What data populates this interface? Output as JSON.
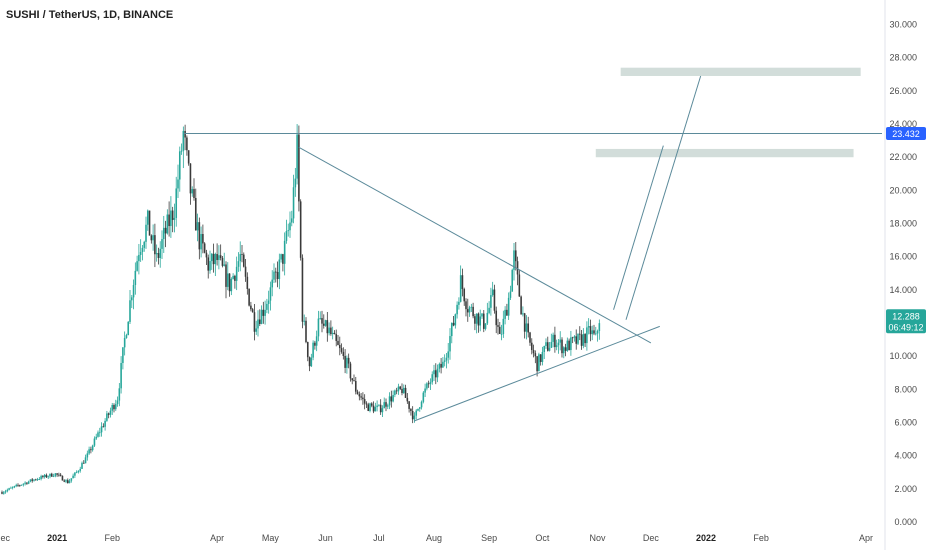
{
  "chart_data": {
    "type": "candlestick",
    "title": "SUSHI / TetherUS, 1D, BINANCE",
    "ylim": [
      0,
      31
    ],
    "y_ticks": [
      "0.000",
      "2.000",
      "4.000",
      "6.000",
      "8.000",
      "10.000",
      "12.000",
      "14.000",
      "16.000",
      "18.000",
      "20.000",
      "22.000",
      "24.000",
      "26.000",
      "28.000",
      "30.000"
    ],
    "x_range": [
      "2020-12-01",
      "2022-04-10"
    ],
    "x_ticks": [
      {
        "label": "Dec",
        "date": "2020-12-01"
      },
      {
        "label": "2021",
        "date": "2021-01-01",
        "bold": true
      },
      {
        "label": "Feb",
        "date": "2021-02-01"
      },
      {
        "label": "Apr",
        "date": "2021-04-01"
      },
      {
        "label": "May",
        "date": "2021-05-01"
      },
      {
        "label": "Jun",
        "date": "2021-06-01"
      },
      {
        "label": "Jul",
        "date": "2021-07-01"
      },
      {
        "label": "Aug",
        "date": "2021-08-01"
      },
      {
        "label": "Sep",
        "date": "2021-09-01"
      },
      {
        "label": "Oct",
        "date": "2021-10-01"
      },
      {
        "label": "Nov",
        "date": "2021-11-01"
      },
      {
        "label": "Dec",
        "date": "2021-12-01"
      },
      {
        "label": "2022",
        "date": "2022-01-01",
        "bold": true
      },
      {
        "label": "Feb",
        "date": "2022-02-01"
      },
      {
        "label": "Apr",
        "date": "2022-04-01"
      }
    ],
    "price_path": [
      [
        "2020-12-01",
        1.8
      ],
      [
        "2020-12-10",
        2.2
      ],
      [
        "2020-12-20",
        2.6
      ],
      [
        "2020-12-31",
        2.9
      ],
      [
        "2021-01-07",
        2.4
      ],
      [
        "2021-01-12",
        3.0
      ],
      [
        "2021-01-18",
        4.0
      ],
      [
        "2021-01-24",
        5.3
      ],
      [
        "2021-01-29",
        6.3
      ],
      [
        "2021-02-04",
        7.5
      ],
      [
        "2021-02-08",
        11.0
      ],
      [
        "2021-02-12",
        14.0
      ],
      [
        "2021-02-16",
        16.5
      ],
      [
        "2021-02-21",
        18.0
      ],
      [
        "2021-02-26",
        15.8
      ],
      [
        "2021-03-03",
        17.5
      ],
      [
        "2021-03-08",
        19.0
      ],
      [
        "2021-03-13",
        23.4
      ],
      [
        "2021-03-17",
        20.0
      ],
      [
        "2021-03-22",
        17.0
      ],
      [
        "2021-03-27",
        15.5
      ],
      [
        "2021-04-01",
        15.8
      ],
      [
        "2021-04-08",
        14.3
      ],
      [
        "2021-04-14",
        16.0
      ],
      [
        "2021-04-18",
        14.0
      ],
      [
        "2021-04-22",
        12.0
      ],
      [
        "2021-04-27",
        12.8
      ],
      [
        "2021-05-03",
        14.5
      ],
      [
        "2021-05-08",
        16.0
      ],
      [
        "2021-05-13",
        18.5
      ],
      [
        "2021-05-16",
        22.5
      ],
      [
        "2021-05-19",
        12.5
      ],
      [
        "2021-05-23",
        9.5
      ],
      [
        "2021-05-28",
        12.0
      ],
      [
        "2021-06-03",
        11.5
      ],
      [
        "2021-06-08",
        10.5
      ],
      [
        "2021-06-13",
        9.5
      ],
      [
        "2021-06-18",
        8.0
      ],
      [
        "2021-06-24",
        7.0
      ],
      [
        "2021-07-01",
        6.8
      ],
      [
        "2021-07-08",
        7.5
      ],
      [
        "2021-07-14",
        8.0
      ],
      [
        "2021-07-18",
        7.0
      ],
      [
        "2021-07-21",
        6.2
      ],
      [
        "2021-07-25",
        7.5
      ],
      [
        "2021-07-30",
        8.5
      ],
      [
        "2021-08-06",
        9.5
      ],
      [
        "2021-08-12",
        12.0
      ],
      [
        "2021-08-16",
        14.5
      ],
      [
        "2021-08-20",
        13.0
      ],
      [
        "2021-08-24",
        12.5
      ],
      [
        "2021-08-29",
        12.0
      ],
      [
        "2021-09-03",
        13.5
      ],
      [
        "2021-09-07",
        11.0
      ],
      [
        "2021-09-12",
        13.5
      ],
      [
        "2021-09-15",
        16.0
      ],
      [
        "2021-09-19",
        13.0
      ],
      [
        "2021-09-23",
        11.0
      ],
      [
        "2021-09-28",
        9.5
      ],
      [
        "2021-10-03",
        10.5
      ],
      [
        "2021-10-08",
        11.0
      ],
      [
        "2021-10-13",
        10.5
      ],
      [
        "2021-10-18",
        10.8
      ],
      [
        "2021-10-23",
        11.0
      ],
      [
        "2021-10-28",
        11.5
      ],
      [
        "2021-10-31",
        11.0
      ],
      [
        "2021-11-02",
        12.3
      ],
      [
        "2021-11-03",
        12.29
      ]
    ],
    "series": [
      {
        "kind": "trendline",
        "from": [
          "2021-03-13",
          23.432
        ],
        "to": [
          "2022-04-10",
          23.432
        ]
      },
      {
        "kind": "trendline",
        "from": [
          "2021-05-17",
          22.6
        ],
        "to": [
          "2021-12-01",
          10.8
        ]
      },
      {
        "kind": "trendline",
        "from": [
          "2021-07-21",
          6.1
        ],
        "to": [
          "2021-12-06",
          11.8
        ]
      },
      {
        "kind": "trendline",
        "from": [
          "2021-11-10",
          12.8
        ],
        "to": [
          "2021-12-08",
          22.7
        ]
      },
      {
        "kind": "trendline",
        "from": [
          "2021-11-17",
          12.2
        ],
        "to": [
          "2021-12-29",
          26.9
        ]
      }
    ],
    "zones": [
      {
        "from": "2021-11-14",
        "to": "2022-03-29",
        "high": 27.4,
        "low": 26.9
      },
      {
        "from": "2021-10-31",
        "to": "2022-03-25",
        "high": 22.5,
        "low": 22.0
      }
    ],
    "price_labels": [
      {
        "value": 23.432,
        "text": "23.432",
        "color": "#2962ff"
      },
      {
        "value": 12.288,
        "text": "12.288",
        "sub": "06:49:12",
        "color": "#26a69a"
      }
    ],
    "colors": {
      "up": "#26a69a",
      "down": "#3a3a3a",
      "line": "#5b8a9a",
      "zone": "#d2ddda",
      "axis": "#4a4a4a"
    },
    "grid": false
  }
}
